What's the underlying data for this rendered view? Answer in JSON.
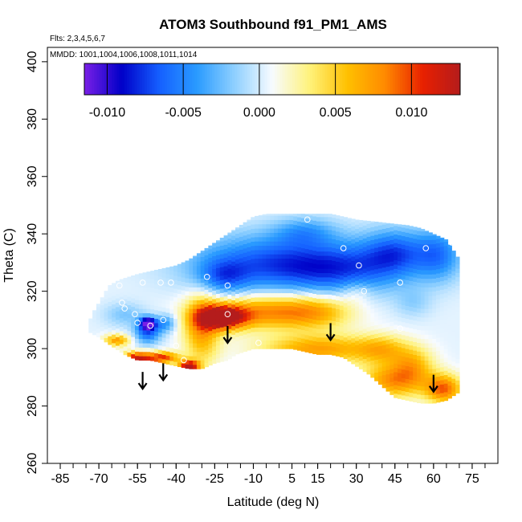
{
  "chart_data": {
    "type": "heatmap",
    "title": "ATOM3 Southbound f91_PM1_AMS",
    "subtitle_flights": "Flts: 2,3,4,5,6,7",
    "subtitle_dates": "MMDD: 1001,1004,1006,1008,1011,1014",
    "xlabel": "Latitude (deg N)",
    "ylabel": "Theta (C)",
    "xlim": [
      -90,
      85
    ],
    "ylim": [
      260,
      405
    ],
    "x_ticks": [
      "-85",
      "-70",
      "-55",
      "-40",
      "-25",
      "-10",
      "5",
      "15",
      "30",
      "45",
      "60",
      "75"
    ],
    "x_tick_values": [
      -85,
      -70,
      -55,
      -40,
      -25,
      -10,
      5,
      15,
      30,
      45,
      60,
      75
    ],
    "y_ticks": [
      "260",
      "280",
      "300",
      "320",
      "340",
      "360",
      "380",
      "400"
    ],
    "y_tick_values": [
      260,
      280,
      300,
      320,
      340,
      360,
      380,
      400
    ],
    "colorbar": {
      "range": [
        -0.0115,
        0.0132
      ],
      "tick_labels": [
        "-0.010",
        "-0.005",
        "0.000",
        "0.005",
        "0.010"
      ],
      "tick_values": [
        -0.01,
        -0.005,
        0.0,
        0.005,
        0.01
      ],
      "colors": [
        "#7a1fe6",
        "#0000c8",
        "#1560ff",
        "#2a9bff",
        "#8fd0ff",
        "#f7fbff",
        "#fff27a",
        "#ffc000",
        "#ff8a00",
        "#e82000",
        "#b41c1c"
      ]
    },
    "domain_top": [
      [
        -74,
        309
      ],
      [
        -72,
        313
      ],
      [
        -70,
        316
      ],
      [
        -68,
        319
      ],
      [
        -66,
        322
      ],
      [
        -62,
        324
      ],
      [
        -55,
        326
      ],
      [
        -50,
        327
      ],
      [
        -45,
        328
      ],
      [
        -40,
        329
      ],
      [
        -35,
        331
      ],
      [
        -30,
        334
      ],
      [
        -25,
        337
      ],
      [
        -20,
        340
      ],
      [
        -15,
        343
      ],
      [
        -10,
        346
      ],
      [
        -5,
        347
      ],
      [
        0,
        347
      ],
      [
        10,
        347
      ],
      [
        20,
        347
      ],
      [
        30,
        345
      ],
      [
        40,
        344
      ],
      [
        50,
        343
      ],
      [
        55,
        342
      ],
      [
        60,
        340
      ],
      [
        65,
        338
      ],
      [
        70,
        331
      ]
    ],
    "domain_bottom": [
      [
        70,
        285
      ],
      [
        65,
        282
      ],
      [
        60,
        281
      ],
      [
        55,
        281
      ],
      [
        50,
        282
      ],
      [
        45,
        283
      ],
      [
        40,
        287
      ],
      [
        35,
        291
      ],
      [
        30,
        294
      ],
      [
        25,
        297
      ],
      [
        20,
        298
      ],
      [
        15,
        298
      ],
      [
        5,
        300
      ],
      [
        -2,
        300
      ],
      [
        -10,
        300
      ],
      [
        -17,
        298
      ],
      [
        -20,
        296
      ],
      [
        -25,
        295
      ],
      [
        -30,
        293
      ],
      [
        -35,
        293
      ],
      [
        -40,
        294
      ],
      [
        -45,
        295
      ],
      [
        -50,
        296
      ],
      [
        -55,
        296
      ],
      [
        -60,
        298
      ],
      [
        -65,
        301
      ],
      [
        -70,
        304
      ],
      [
        -74,
        306
      ]
    ],
    "anomalies": [
      {
        "lat": -5,
        "theta": 330,
        "value": -0.0065,
        "r_lat": 30,
        "r_theta": 10
      },
      {
        "lat": 25,
        "theta": 328,
        "value": -0.0062,
        "r_lat": 25,
        "r_theta": 9
      },
      {
        "lat": 45,
        "theta": 334,
        "value": -0.0058,
        "r_lat": 12,
        "r_theta": 8
      },
      {
        "lat": 62,
        "theta": 333,
        "value": -0.0055,
        "r_lat": 9,
        "r_theta": 9
      },
      {
        "lat": -22,
        "theta": 325,
        "value": -0.0045,
        "r_lat": 10,
        "r_theta": 6
      },
      {
        "lat": 10,
        "theta": 341,
        "value": -0.0035,
        "r_lat": 12,
        "r_theta": 5
      },
      {
        "lat": -22,
        "theta": 311,
        "value": 0.0135,
        "r_lat": 9,
        "r_theta": 4
      },
      {
        "lat": -5,
        "theta": 313,
        "value": 0.0075,
        "r_lat": 22,
        "r_theta": 6
      },
      {
        "lat": 15,
        "theta": 313,
        "value": 0.0045,
        "r_lat": 14,
        "r_theta": 6
      },
      {
        "lat": -30,
        "theta": 307,
        "value": 0.0068,
        "r_lat": 7,
        "r_theta": 12
      },
      {
        "lat": 15,
        "theta": 300,
        "value": 0.0068,
        "r_lat": 22,
        "r_theta": 5
      },
      {
        "lat": 45,
        "theta": 289,
        "value": 0.0075,
        "r_lat": 13,
        "r_theta": 6
      },
      {
        "lat": 64,
        "theta": 286,
        "value": 0.0085,
        "r_lat": 7,
        "r_theta": 5
      },
      {
        "lat": 52,
        "theta": 295,
        "value": 0.0045,
        "r_lat": 8,
        "r_theta": 6
      },
      {
        "lat": 40,
        "theta": 300,
        "value": 0.0045,
        "r_lat": 10,
        "r_theta": 5
      },
      {
        "lat": -35,
        "theta": 294,
        "value": 0.013,
        "r_lat": 4,
        "r_theta": 2
      },
      {
        "lat": -55,
        "theta": 297,
        "value": 0.0115,
        "r_lat": 6,
        "r_theta": 2
      },
      {
        "lat": -45,
        "theta": 297,
        "value": 0.0095,
        "r_lat": 6,
        "r_theta": 2
      },
      {
        "lat": -63,
        "theta": 303,
        "value": 0.007,
        "r_lat": 5,
        "r_theta": 2
      },
      {
        "lat": -51,
        "theta": 309,
        "value": -0.011,
        "r_lat": 3,
        "r_theta": 2
      },
      {
        "lat": -51,
        "theta": 306,
        "value": -0.007,
        "r_lat": 5,
        "r_theta": 4
      },
      {
        "lat": -44,
        "theta": 309,
        "value": -0.0045,
        "r_lat": 4,
        "r_theta": 3
      },
      {
        "lat": -60,
        "theta": 312,
        "value": -0.0025,
        "r_lat": 8,
        "r_theta": 4
      },
      {
        "lat": 30,
        "theta": 320,
        "value": 0.002,
        "r_lat": 6,
        "r_theta": 4
      },
      {
        "lat": 52,
        "theta": 316,
        "value": -0.0018,
        "r_lat": 7,
        "r_theta": 5
      }
    ],
    "sample_points": [
      [
        -62,
        322
      ],
      [
        -61,
        316
      ],
      [
        -60,
        314
      ],
      [
        -56,
        312
      ],
      [
        -53,
        323
      ],
      [
        -55,
        309
      ],
      [
        -50,
        308
      ],
      [
        -46,
        323
      ],
      [
        -45,
        310
      ],
      [
        -42,
        323
      ],
      [
        -40,
        301
      ],
      [
        -37,
        296
      ],
      [
        -28,
        325
      ],
      [
        -20,
        322
      ],
      [
        -20,
        312
      ],
      [
        -8,
        302
      ],
      [
        11,
        345
      ],
      [
        25,
        335
      ],
      [
        31,
        329
      ],
      [
        33,
        320
      ],
      [
        47,
        307
      ],
      [
        47,
        323
      ],
      [
        57,
        335
      ],
      [
        67,
        337
      ]
    ],
    "arrows": [
      {
        "lat": -53,
        "theta": 286
      },
      {
        "lat": -45,
        "theta": 289
      },
      {
        "lat": -20,
        "theta": 302
      },
      {
        "lat": 20,
        "theta": 303
      },
      {
        "lat": 60,
        "theta": 285
      }
    ]
  }
}
